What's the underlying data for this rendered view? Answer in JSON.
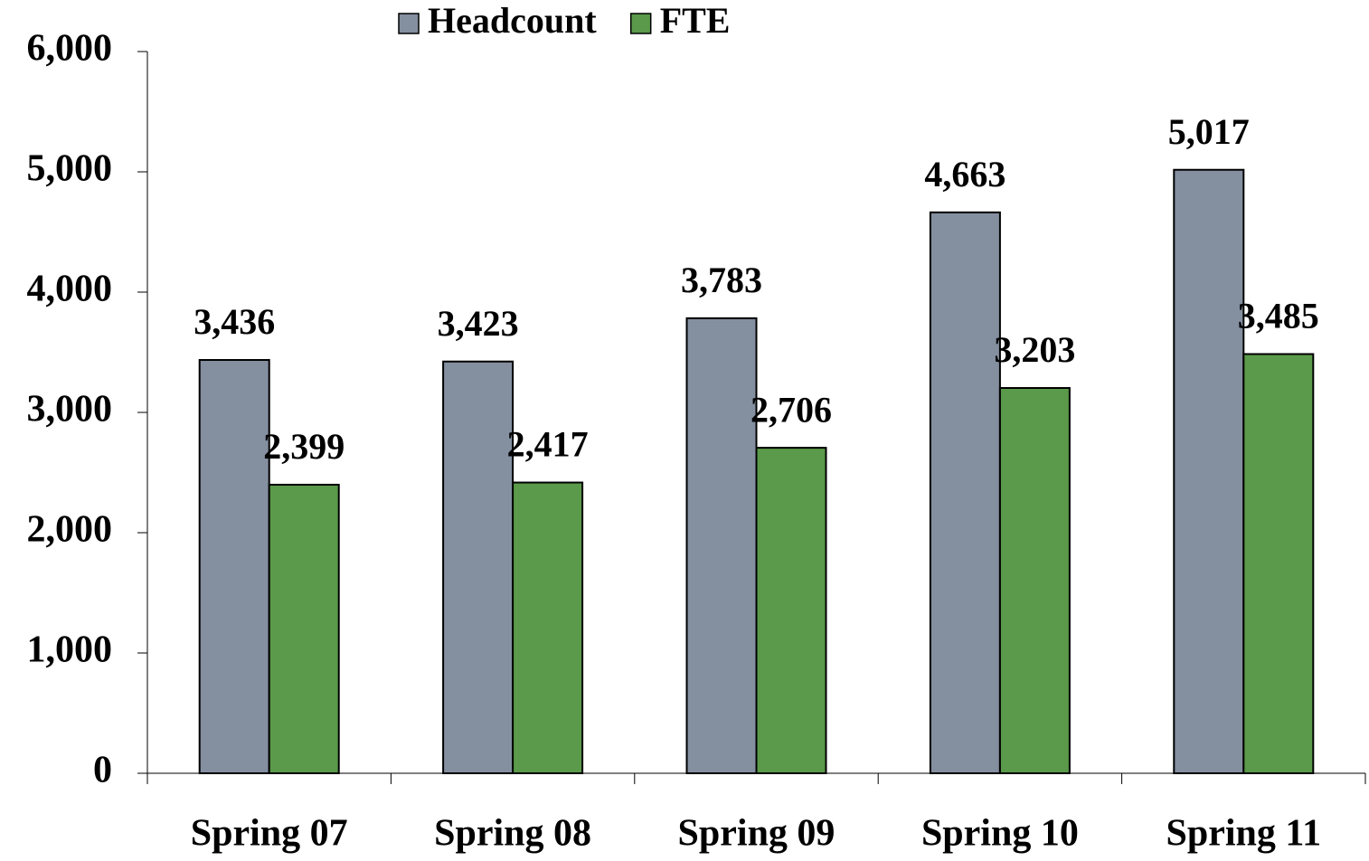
{
  "chart_data": {
    "type": "bar",
    "categories": [
      "Spring 07",
      "Spring 08",
      "Spring 09",
      "Spring 10",
      "Spring 11"
    ],
    "series": [
      {
        "name": "Headcount",
        "color": "#848fa0",
        "values": [
          3436,
          3423,
          3783,
          4663,
          5017
        ],
        "value_labels": [
          "3,436",
          "3,423",
          "3,783",
          "4,663",
          "5,017"
        ]
      },
      {
        "name": "FTE",
        "color": "#5a9a4a",
        "values": [
          2399,
          2417,
          2706,
          3203,
          3485
        ],
        "value_labels": [
          "2,399",
          "2,417",
          "2,706",
          "3,203",
          "3,485"
        ]
      }
    ],
    "ylim": [
      0,
      6000
    ],
    "yticks": [
      0,
      {
        "value": 1000,
        "label": "1,000"
      },
      {
        "value": 2000,
        "label": "2,000"
      },
      {
        "value": 3000,
        "label": "3,000"
      },
      {
        "value": 4000,
        "label": "4,000"
      },
      {
        "value": 5000,
        "label": "5,000"
      },
      {
        "value": 6000,
        "label": "6,000"
      }
    ],
    "legend": "top",
    "grid": false
  }
}
